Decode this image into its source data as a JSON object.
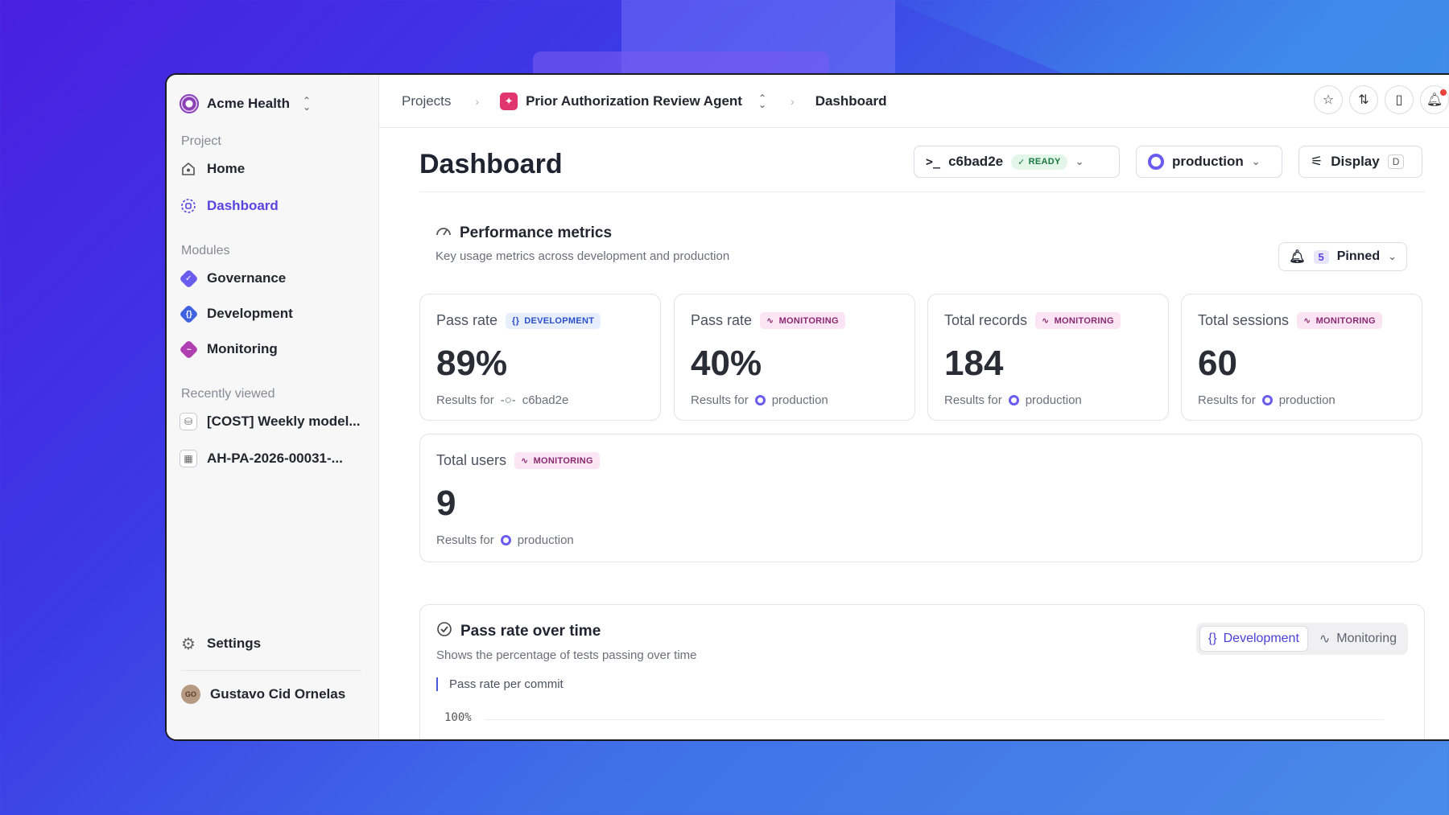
{
  "sidebar": {
    "org_name": "Acme Health",
    "section_project": "Project",
    "nav_home": "Home",
    "nav_dashboard": "Dashboard",
    "section_modules": "Modules",
    "nav_governance": "Governance",
    "nav_development": "Development",
    "nav_monitoring": "Monitoring",
    "section_recent": "Recently viewed",
    "recent": [
      "[COST] Weekly model...",
      "AH-PA-2026-00031-..."
    ],
    "settings": "Settings",
    "user_initials": "GO",
    "user_name": "Gustavo Cid Ornelas"
  },
  "breadcrumb": {
    "projects": "Projects",
    "agent": "Prior Authorization Review Agent",
    "current": "Dashboard"
  },
  "header": {
    "title": "Dashboard",
    "commit": "c6bad2e",
    "commit_status": "READY",
    "environment": "production",
    "display": "Display",
    "display_key": "D"
  },
  "performance": {
    "title": "Performance metrics",
    "subtitle": "Key usage metrics across development and production",
    "pinned_count": "5",
    "pinned_label": "Pinned",
    "cards": [
      {
        "label": "Pass rate",
        "tag": "DEVELOPMENT",
        "value": "89%",
        "foot": "Results for",
        "source": "c6bad2e"
      },
      {
        "label": "Pass rate",
        "tag": "MONITORING",
        "value": "40%",
        "foot": "Results for",
        "source": "production"
      },
      {
        "label": "Total records",
        "tag": "MONITORING",
        "value": "184",
        "foot": "Results for",
        "source": "production"
      },
      {
        "label": "Total sessions",
        "tag": "MONITORING",
        "value": "60",
        "foot": "Results for",
        "source": "production"
      },
      {
        "label": "Total users",
        "tag": "MONITORING",
        "value": "9",
        "foot": "Results for",
        "source": "production"
      }
    ]
  },
  "pass_rate_chart": {
    "title": "Pass rate over time",
    "subtitle": "Shows the percentage of tests passing over time",
    "tab_development": "Development",
    "tab_monitoring": "Monitoring",
    "legend": "Pass rate per commit",
    "ytick_top": "100%"
  },
  "colors": {
    "accent": "#5a44e0",
    "governance": "#6b5cf0",
    "development": "#3f62e0",
    "monitoring": "#b03fb0"
  }
}
